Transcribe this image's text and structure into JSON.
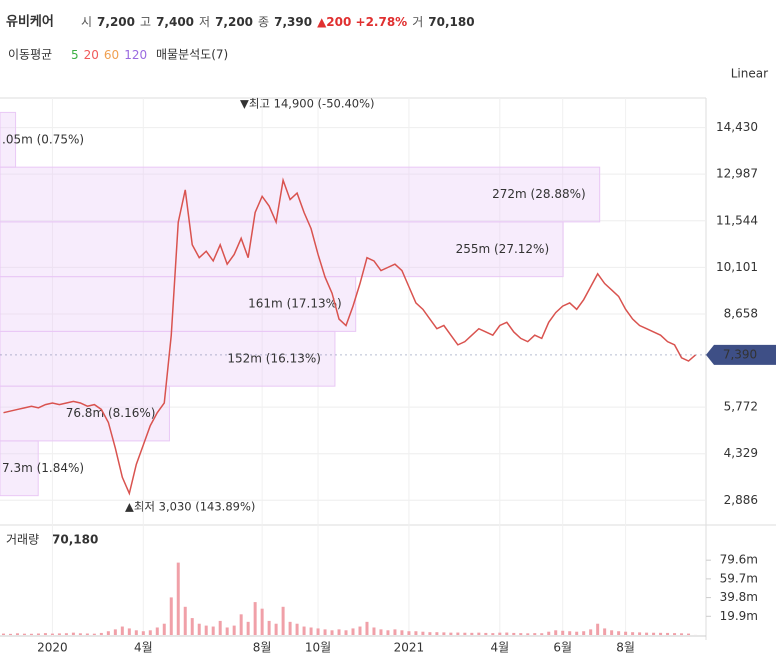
{
  "header": {
    "title": "유비케어",
    "items": [
      {
        "label": "시",
        "value": "7,200"
      },
      {
        "label": "고",
        "value": "7,400"
      },
      {
        "label": "저",
        "value": "7,200"
      },
      {
        "label": "종",
        "value": "7,390"
      }
    ],
    "change": "▲200 +2.78%",
    "volume_label": "거",
    "volume": "70,180"
  },
  "legend": {
    "title": "이동평균",
    "averages": [
      {
        "name": "5",
        "color": "#3cb043"
      },
      {
        "name": "20",
        "color": "#f05a5a"
      },
      {
        "name": "60",
        "color": "#f0a050"
      },
      {
        "name": "120",
        "color": "#9a6ae0"
      }
    ],
    "profile": "매물분석도(7)",
    "scale": "Linear"
  },
  "chart_data": {
    "type": "line",
    "color": "#d9534f",
    "categories": [
      null,
      null,
      null,
      null,
      null,
      null,
      null,
      "2020",
      null,
      null,
      null,
      null,
      null,
      null,
      null,
      null,
      null,
      null,
      null,
      null,
      "4월",
      null,
      null,
      null,
      null,
      null,
      null,
      null,
      null,
      null,
      null,
      null,
      null,
      null,
      null,
      null,
      null,
      "8월",
      null,
      null,
      null,
      null,
      null,
      null,
      null,
      "10월",
      null,
      null,
      null,
      null,
      null,
      null,
      null,
      null,
      null,
      null,
      null,
      null,
      "2021",
      null,
      null,
      null,
      null,
      null,
      null,
      null,
      null,
      null,
      null,
      null,
      null,
      "4월",
      null,
      null,
      null,
      null,
      null,
      null,
      null,
      null,
      "6월",
      null,
      null,
      null,
      null,
      null,
      null,
      null,
      null,
      "8월",
      null,
      null,
      null,
      null,
      null,
      null,
      null,
      null,
      null,
      null
    ],
    "values": [
      5600,
      5650,
      5700,
      5750,
      5800,
      5750,
      5850,
      5900,
      5850,
      5900,
      5950,
      5900,
      5800,
      5850,
      5700,
      5300,
      4500,
      3600,
      3100,
      4000,
      4600,
      5200,
      5600,
      5900,
      8000,
      11500,
      12500,
      10800,
      10400,
      10600,
      10300,
      10800,
      10200,
      10500,
      11000,
      10400,
      11800,
      12300,
      12000,
      11500,
      12800,
      12200,
      12400,
      11800,
      11300,
      10500,
      9800,
      9300,
      8500,
      8300,
      8900,
      9600,
      10400,
      10300,
      10000,
      10100,
      10200,
      10000,
      9500,
      9000,
      8800,
      8500,
      8200,
      8300,
      8000,
      7700,
      7800,
      8000,
      8200,
      8100,
      8000,
      8300,
      8400,
      8100,
      7900,
      7800,
      8000,
      7900,
      8400,
      8700,
      8900,
      9000,
      8800,
      9100,
      9500,
      9900,
      9600,
      9400,
      9200,
      8800,
      8500,
      8300,
      8200,
      8100,
      8000,
      7800,
      7700,
      7300,
      7200,
      7390
    ],
    "ylim": [
      2276,
      15346
    ],
    "yticks": [
      {
        "value": 14430,
        "label": "14,430"
      },
      {
        "value": 12987,
        "label": "12,987"
      },
      {
        "value": 11544,
        "label": "11,544"
      },
      {
        "value": 10101,
        "label": "10,101"
      },
      {
        "value": 8658,
        "label": "8,658"
      },
      {
        "value": 5772,
        "label": "5,772"
      },
      {
        "value": 4329,
        "label": "4,329"
      },
      {
        "value": 2886,
        "label": "2,886"
      }
    ],
    "current": {
      "value": 7390,
      "label": "7,390"
    },
    "annotations": [
      "▼최고 14,900 (-50.40%)",
      "▲최저 3,030 (143.89%)"
    ],
    "profile": {
      "color": "#e9c8f5",
      "xlim": [
        0,
        34
      ],
      "bands": [
        [
          13204,
          14900
        ],
        [
          11509,
          13204
        ],
        [
          9813,
          11509
        ],
        [
          8117,
          9813
        ],
        [
          6421,
          8117
        ],
        [
          4726,
          6421
        ],
        [
          3030,
          4726
        ]
      ],
      "values": [
        0.75,
        28.88,
        27.12,
        17.13,
        16.13,
        8.16,
        1.84
      ],
      "value_labels": [
        ".05m (0.75%)",
        "272m (28.88%)",
        "255m (27.12%)",
        "161m (17.13%)",
        "152m (16.13%)",
        "76.8m (8.16%)",
        "7.3m (1.84%)"
      ]
    },
    "volume": {
      "title": "거래량",
      "last": "70,180",
      "color": "#f0a0a8",
      "ylim": [
        0,
        100000000
      ],
      "yticks": [
        {
          "value": 79600000,
          "label": "79.6m"
        },
        {
          "value": 59700000,
          "label": "59.7m"
        },
        {
          "value": 39800000,
          "label": "39.8m"
        },
        {
          "value": 19900000,
          "label": "19.9m"
        }
      ],
      "values": [
        1500000,
        1200000,
        1800000,
        1400000,
        1300000,
        1600000,
        2000000,
        1500000,
        1700000,
        1900000,
        2500000,
        1800000,
        1600000,
        1400000,
        2200000,
        4000000,
        6000000,
        9000000,
        7000000,
        5000000,
        4000000,
        5000000,
        8000000,
        12000000,
        40000000,
        77000000,
        30000000,
        18000000,
        12000000,
        10000000,
        9000000,
        15000000,
        8000000,
        10000000,
        22000000,
        14000000,
        35000000,
        28000000,
        15000000,
        12000000,
        30000000,
        14000000,
        12000000,
        9000000,
        8000000,
        7000000,
        6000000,
        5000000,
        6000000,
        5000000,
        7000000,
        9000000,
        14000000,
        8000000,
        6000000,
        5000000,
        6000000,
        5000000,
        4000000,
        4000000,
        3500000,
        3000000,
        3000000,
        2800000,
        2500000,
        2600000,
        2400000,
        2300000,
        2500000,
        2200000,
        2000000,
        2500000,
        2600000,
        2200000,
        2000000,
        1800000,
        2000000,
        1900000,
        3500000,
        5000000,
        4500000,
        4000000,
        3500000,
        4000000,
        6000000,
        12000000,
        7000000,
        5000000,
        4000000,
        3500000,
        3000000,
        2800000,
        2500000,
        2400000,
        2300000,
        2200000,
        2000000,
        1800000,
        1500000,
        70180
      ]
    }
  }
}
